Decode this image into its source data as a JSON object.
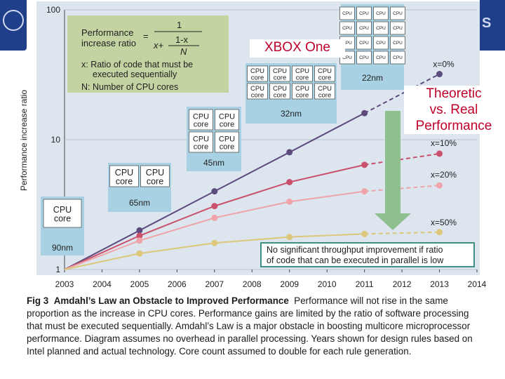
{
  "chart_data": {
    "type": "line",
    "xlabel": "",
    "ylabel": "Performance increase ratio",
    "x_ticks": [
      "2003",
      "2004",
      "2005",
      "2006",
      "2007",
      "2008",
      "2009",
      "2010",
      "2011",
      "2012",
      "2013",
      "2014"
    ],
    "y_ticks": [
      "1",
      "10",
      "100"
    ],
    "y_scale": "log",
    "ylim": [
      1,
      100
    ],
    "xlim": [
      2003,
      2014
    ],
    "series": [
      {
        "name": "x=0%",
        "color": "#5d4b7e",
        "x": [
          2005,
          2007,
          2009,
          2011,
          2013
        ],
        "y": [
          2,
          4,
          8,
          16,
          32
        ]
      },
      {
        "name": "x=10%",
        "color": "#c9516b",
        "x": [
          2005,
          2007,
          2009,
          2011,
          2013
        ],
        "y": [
          1.82,
          3.08,
          4.71,
          6.4,
          7.8
        ]
      },
      {
        "name": "x=20%",
        "color": "#eea4a8",
        "x": [
          2005,
          2007,
          2009,
          2011,
          2013
        ],
        "y": [
          1.67,
          2.5,
          3.33,
          4.0,
          4.44
        ]
      },
      {
        "name": "x=50%",
        "color": "#dcc77a",
        "x": [
          2005,
          2007,
          2009,
          2011,
          2013
        ],
        "y": [
          1.33,
          1.6,
          1.78,
          1.88,
          1.94
        ]
      }
    ],
    "cpu_boxes": [
      {
        "node": "90nm",
        "cores": 1,
        "year": 2003
      },
      {
        "node": "65nm",
        "cores": 2,
        "year": 2005
      },
      {
        "node": "45nm",
        "cores": 4,
        "year": 2007
      },
      {
        "node": "32nm",
        "cores": 8,
        "year": 2009
      },
      {
        "node": "22nm",
        "cores": 16,
        "year": 2011
      }
    ],
    "cpu_label": "CPU",
    "core_label": "core",
    "formula": {
      "lhs_line1": "Performance",
      "lhs_line2": "increase ratio",
      "eq": "=",
      "numerator": "1",
      "den_top": "1-x",
      "den_x": "x+",
      "den_bottom": "N",
      "note_x": "x: Ratio of code that must be executed sequentially",
      "note_x_line1": "x: Ratio of code that must be",
      "note_x_line2": "executed sequentially",
      "note_n": "N: Number of CPU cores"
    },
    "callout": "No significant throughput improvement if ratio of code that can be executed in parallel is low",
    "callout_line1": "No significant throughput improvement if ratio",
    "callout_line2": "of code that can be executed in parallel is low"
  },
  "overlay": {
    "xbox": "XBOX One",
    "theoretic_line1": "Theoretic",
    "theoretic_line2": "vs. Real",
    "theoretic_line3": "Performance"
  },
  "caption": {
    "fig": "Fig 3",
    "title": "Amdahl’s Law an Obstacle to Improved Performance",
    "text": "Performance will not rise in the same proportion as the increase in CPU cores. Performance gains are limited by the ratio of software processing that must be executed sequentially. Amdahl’s Law is a major obstacle in boosting multicore microprocessor performance. Diagram assumes no overhead in parallel processing. Years shown for design rules based on Intel planned and actual technology. Core count assumed to double for each rule generation."
  },
  "colors": {
    "panel": "#dde6ef",
    "cpu_box": "#a8d1e3",
    "formula_box": "#c3d3a1",
    "arrow": "#8fbf8f",
    "callout_border": "#3f8f87"
  }
}
